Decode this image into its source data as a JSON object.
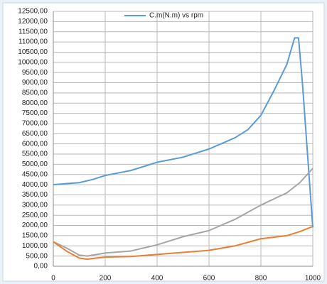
{
  "chart_data": {
    "type": "line",
    "series": [
      {
        "name": "C.m(N.m) vs rpm",
        "color": "#5b9bd5",
        "x": [
          0,
          50,
          100,
          150,
          200,
          300,
          400,
          500,
          600,
          700,
          750,
          800,
          850,
          900,
          930,
          945,
          960,
          1000
        ],
        "values": [
          4000,
          4050,
          4100,
          4250,
          4450,
          4700,
          5100,
          5350,
          5750,
          6300,
          6700,
          7400,
          8600,
          9900,
          11200,
          11200,
          9000,
          1900
        ]
      },
      {
        "color": "#a5a5a5",
        "x": [
          0,
          50,
          100,
          130,
          200,
          300,
          400,
          500,
          600,
          700,
          800,
          900,
          950,
          1000
        ],
        "values": [
          1200,
          900,
          550,
          500,
          650,
          750,
          1050,
          1450,
          1750,
          2300,
          3000,
          3600,
          4100,
          4800
        ]
      },
      {
        "color": "#ed7d31",
        "x": [
          0,
          50,
          100,
          130,
          200,
          300,
          400,
          500,
          600,
          700,
          800,
          900,
          950,
          1000
        ],
        "values": [
          1200,
          750,
          400,
          350,
          450,
          480,
          580,
          680,
          780,
          1000,
          1350,
          1500,
          1700,
          1950
        ]
      }
    ],
    "xlim": [
      0,
      1000
    ],
    "xticks": [
      0,
      200,
      400,
      600,
      800,
      1000
    ],
    "ylim": [
      0,
      12500
    ],
    "yticks": [
      {
        "value": 0,
        "label": "0,00"
      },
      {
        "value": 500,
        "label": "500,00"
      },
      {
        "value": 1000,
        "label": "1000,00"
      },
      {
        "value": 1500,
        "label": "1500,00"
      },
      {
        "value": 2000,
        "label": "2000,00"
      },
      {
        "value": 2500,
        "label": "2500,00"
      },
      {
        "value": 3000,
        "label": "3000,00"
      },
      {
        "value": 3500,
        "label": "3500,00"
      },
      {
        "value": 4000,
        "label": "4000,00"
      },
      {
        "value": 4500,
        "label": "4500,00"
      },
      {
        "value": 5000,
        "label": "5000,00"
      },
      {
        "value": 5500,
        "label": "5500,00"
      },
      {
        "value": 6000,
        "label": "6000,00"
      },
      {
        "value": 6500,
        "label": "6500,00"
      },
      {
        "value": 7000,
        "label": "7000,00"
      },
      {
        "value": 7500,
        "label": "7500,00"
      },
      {
        "value": 8000,
        "label": "8000,00"
      },
      {
        "value": 8500,
        "label": "8500,00"
      },
      {
        "value": 9000,
        "label": "9000,00"
      },
      {
        "value": 9500,
        "label": "9500,00"
      },
      {
        "value": 10000,
        "label": "10000,00"
      },
      {
        "value": 10500,
        "label": "10500,00"
      },
      {
        "value": 11000,
        "label": "11000,00"
      },
      {
        "value": 11500,
        "label": "11500,00"
      },
      {
        "value": 12000,
        "label": "12000,00"
      },
      {
        "value": 12500,
        "label": "12500,00"
      }
    ],
    "grid": true,
    "legend": "top"
  }
}
